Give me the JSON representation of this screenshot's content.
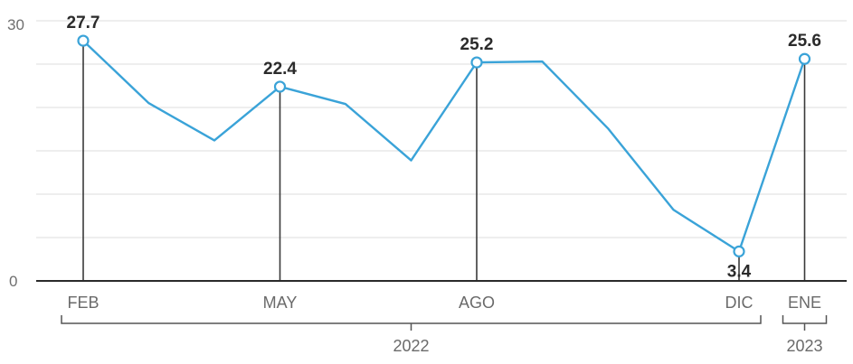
{
  "chart_data": {
    "type": "line",
    "title": "",
    "xlabel": "",
    "ylabel": "",
    "ylim": [
      0,
      30
    ],
    "yticks": [
      0,
      30
    ],
    "grid": true,
    "legend": "none",
    "color": "#3aa3d8",
    "points": [
      {
        "y": 27.7,
        "label": "27.7",
        "tick": "FEB"
      },
      {
        "y": 20.5
      },
      {
        "y": 16.2
      },
      {
        "y": 22.4,
        "label": "22.4",
        "tick": "MAY"
      },
      {
        "y": 20.4
      },
      {
        "y": 13.9
      },
      {
        "y": 25.2,
        "label": "25.2",
        "tick": "AGO"
      },
      {
        "y": 25.3
      },
      {
        "y": 17.6
      },
      {
        "y": 8.2
      },
      {
        "y": 3.4,
        "label": "3.4",
        "tick": "DIC"
      },
      {
        "y": 25.6,
        "label": "25.6",
        "tick": "ENE"
      }
    ],
    "year_groups": [
      {
        "label": "2022",
        "from": 0,
        "to": 10
      },
      {
        "label": "2023",
        "from": 11,
        "to": 11
      }
    ]
  }
}
